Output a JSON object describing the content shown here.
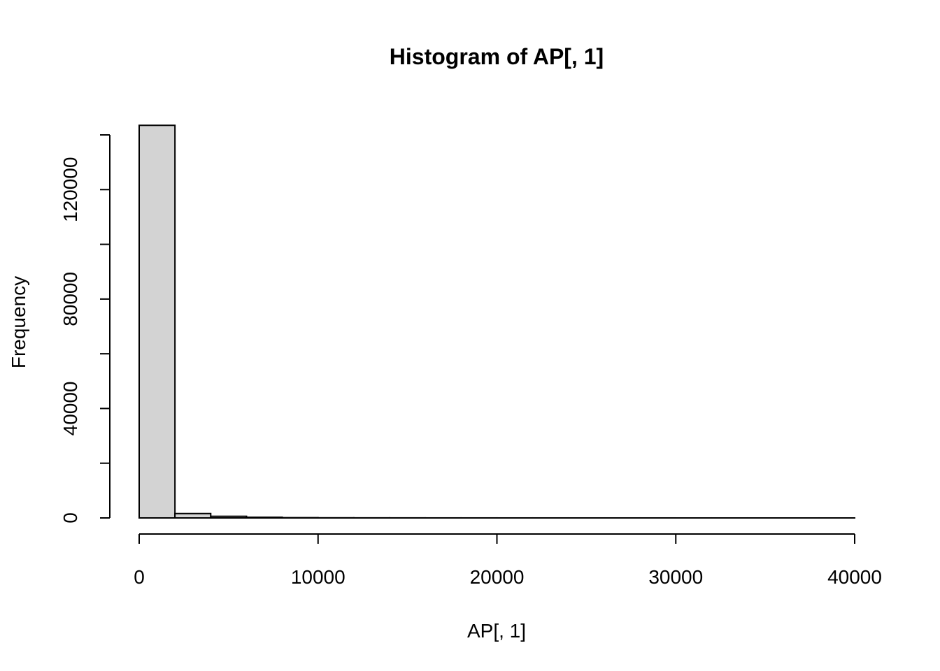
{
  "chart_data": {
    "type": "bar",
    "title": "Histogram of AP[, 1]",
    "xlabel": "AP[, 1]",
    "ylabel": "Frequency",
    "xlim": [
      0,
      40000
    ],
    "ylim": [
      0,
      140000
    ],
    "x_ticks": [
      0,
      10000,
      20000,
      30000,
      40000
    ],
    "y_ticks": [
      0,
      40000,
      80000,
      120000
    ],
    "y_minor_ticks": [
      0,
      20000,
      40000,
      60000,
      80000,
      100000,
      120000,
      140000
    ],
    "bins": [
      {
        "start": 0,
        "end": 2000,
        "count": 143500
      },
      {
        "start": 2000,
        "end": 4000,
        "count": 1600
      },
      {
        "start": 4000,
        "end": 6000,
        "count": 600
      },
      {
        "start": 6000,
        "end": 8000,
        "count": 250
      },
      {
        "start": 8000,
        "end": 10000,
        "count": 100
      },
      {
        "start": 10000,
        "end": 12000,
        "count": 50
      },
      {
        "start": 12000,
        "end": 14000,
        "count": 30
      },
      {
        "start": 14000,
        "end": 16000,
        "count": 20
      },
      {
        "start": 16000,
        "end": 18000,
        "count": 10
      },
      {
        "start": 18000,
        "end": 20000,
        "count": 8
      },
      {
        "start": 20000,
        "end": 22000,
        "count": 5
      },
      {
        "start": 22000,
        "end": 24000,
        "count": 4
      },
      {
        "start": 24000,
        "end": 26000,
        "count": 3
      },
      {
        "start": 26000,
        "end": 28000,
        "count": 2
      },
      {
        "start": 28000,
        "end": 30000,
        "count": 2
      },
      {
        "start": 30000,
        "end": 32000,
        "count": 1
      },
      {
        "start": 32000,
        "end": 34000,
        "count": 1
      },
      {
        "start": 34000,
        "end": 36000,
        "count": 1
      },
      {
        "start": 36000,
        "end": 38000,
        "count": 1
      },
      {
        "start": 38000,
        "end": 40000,
        "count": 1
      }
    ],
    "bar_fill": "#d3d3d3",
    "bar_stroke": "#000000",
    "grid": false,
    "legend": "none"
  }
}
